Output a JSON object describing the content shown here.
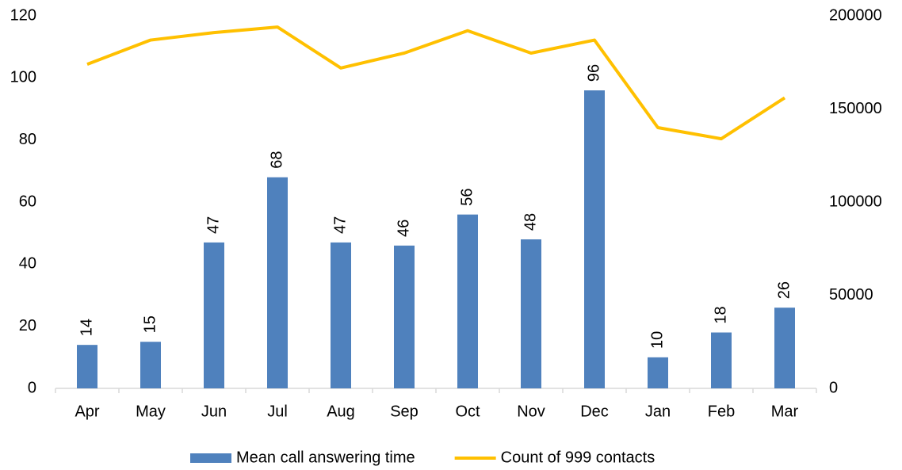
{
  "chart_data": {
    "type": "bar_line",
    "categories": [
      "Apr",
      "May",
      "Jun",
      "Jul",
      "Aug",
      "Sep",
      "Oct",
      "Nov",
      "Dec",
      "Jan",
      "Feb",
      "Mar"
    ],
    "series": [
      {
        "name": "Mean call answering time",
        "color": "#4f81bd",
        "type": "bar",
        "axis": "y",
        "values": [
          14,
          15,
          47,
          68,
          47,
          46,
          56,
          48,
          96,
          10,
          18,
          26
        ]
      },
      {
        "name": "Count of 999 contacts",
        "color": "#ffc000",
        "type": "line",
        "axis": "y2",
        "values": [
          174000,
          187000,
          191000,
          194000,
          172000,
          180000,
          192000,
          180000,
          187000,
          140000,
          134000,
          156000
        ]
      }
    ],
    "ylim": [
      0,
      120
    ],
    "yticks": [
      0,
      20,
      40,
      60,
      80,
      100,
      120
    ],
    "y2lim": [
      0,
      200000
    ],
    "y2ticks": [
      0,
      50000,
      100000,
      150000,
      200000
    ],
    "legend": "bottom",
    "grid": false
  }
}
